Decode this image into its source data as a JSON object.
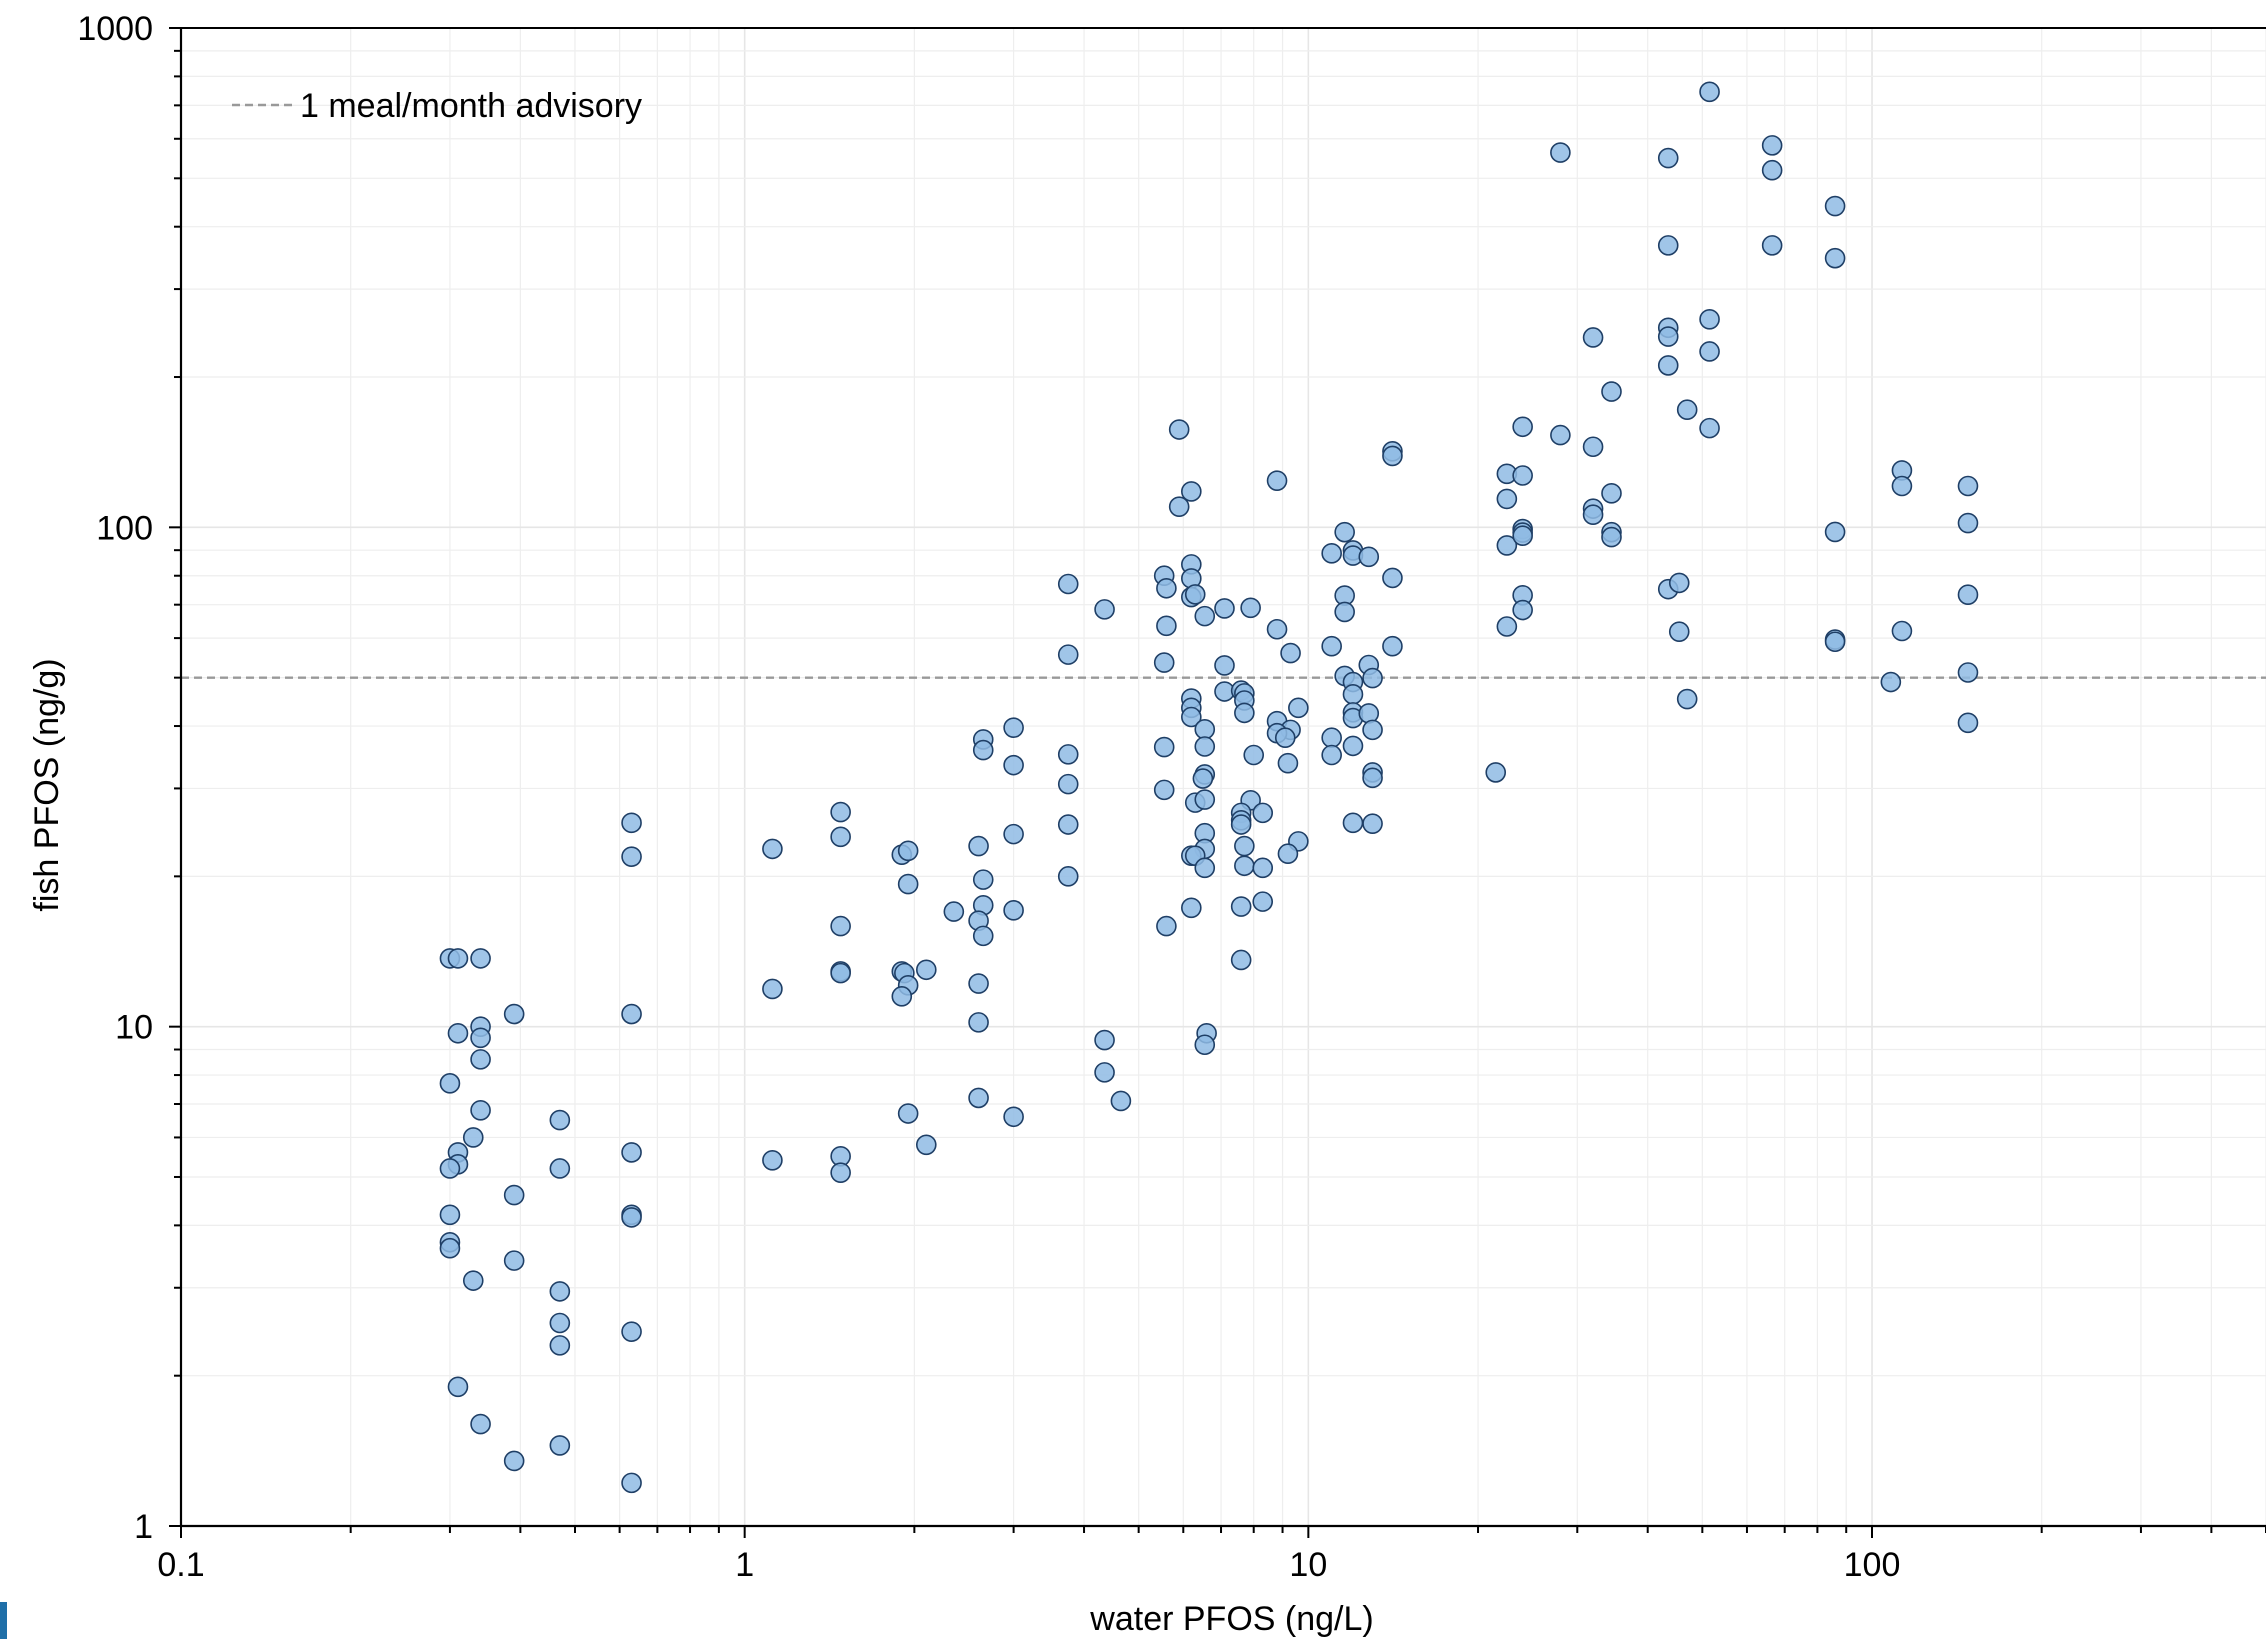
{
  "chart_data": {
    "type": "scatter",
    "xlabel": "water  PFOS (ng/L)",
    "ylabel": "fish PFOS (ng/g)",
    "xscale": "log",
    "yscale": "log",
    "xlim": [
      0.1,
      500
    ],
    "ylim": [
      1,
      1000
    ],
    "x_tick_labels": [
      "0.1",
      "1",
      "10",
      "100"
    ],
    "y_tick_labels": [
      "1",
      "10",
      "100",
      "1000"
    ],
    "grid": true,
    "legend_position": "top-left",
    "advisory": {
      "label": "1 meal/month advisory",
      "y": 50,
      "color": "#999999"
    },
    "marker": {
      "fill": "#8fbbe4",
      "stroke": "#1f3f66"
    },
    "points": [
      [
        0.3,
        13.7
      ],
      [
        0.31,
        13.7
      ],
      [
        0.34,
        13.7
      ],
      [
        0.34,
        10.0
      ],
      [
        0.34,
        9.5
      ],
      [
        0.31,
        9.7
      ],
      [
        0.34,
        8.6
      ],
      [
        0.3,
        7.7
      ],
      [
        0.34,
        6.8
      ],
      [
        0.33,
        6.0
      ],
      [
        0.31,
        5.6
      ],
      [
        0.31,
        5.3
      ],
      [
        0.3,
        5.2
      ],
      [
        0.3,
        4.2
      ],
      [
        0.3,
        3.7
      ],
      [
        0.3,
        3.6
      ],
      [
        0.33,
        3.1
      ],
      [
        0.31,
        1.9
      ],
      [
        0.34,
        1.6
      ],
      [
        0.39,
        10.6
      ],
      [
        0.39,
        4.6
      ],
      [
        0.39,
        3.4
      ],
      [
        0.39,
        1.35
      ],
      [
        0.47,
        6.5
      ],
      [
        0.47,
        5.2
      ],
      [
        0.47,
        2.95
      ],
      [
        0.47,
        2.55
      ],
      [
        0.47,
        2.3
      ],
      [
        0.47,
        1.45
      ],
      [
        0.63,
        25.6
      ],
      [
        0.63,
        21.9
      ],
      [
        0.63,
        10.6
      ],
      [
        0.63,
        5.6
      ],
      [
        0.63,
        4.2
      ],
      [
        0.63,
        4.15
      ],
      [
        0.63,
        2.45
      ],
      [
        0.63,
        1.22
      ],
      [
        1.12,
        22.7
      ],
      [
        1.12,
        11.9
      ],
      [
        1.12,
        5.4
      ],
      [
        1.48,
        26.9
      ],
      [
        1.48,
        24.0
      ],
      [
        1.48,
        15.9
      ],
      [
        1.48,
        12.9
      ],
      [
        1.48,
        12.8
      ],
      [
        1.48,
        5.5
      ],
      [
        1.48,
        5.1
      ],
      [
        1.9,
        22.1
      ],
      [
        1.95,
        22.5
      ],
      [
        1.95,
        19.3
      ],
      [
        1.9,
        12.9
      ],
      [
        1.92,
        12.8
      ],
      [
        1.95,
        12.1
      ],
      [
        1.9,
        11.5
      ],
      [
        2.1,
        13.0
      ],
      [
        2.35,
        17.0
      ],
      [
        1.95,
        6.7
      ],
      [
        2.1,
        5.8
      ],
      [
        2.6,
        23.0
      ],
      [
        2.65,
        37.6
      ],
      [
        2.65,
        35.8
      ],
      [
        2.65,
        19.7
      ],
      [
        2.65,
        17.5
      ],
      [
        2.6,
        16.3
      ],
      [
        2.65,
        15.2
      ],
      [
        2.6,
        12.2
      ],
      [
        2.6,
        10.2
      ],
      [
        2.6,
        7.2
      ],
      [
        3.0,
        39.7
      ],
      [
        3.0,
        33.4
      ],
      [
        3.0,
        24.3
      ],
      [
        3.0,
        17.1
      ],
      [
        3.0,
        6.6
      ],
      [
        3.75,
        77.0
      ],
      [
        3.75,
        55.6
      ],
      [
        3.75,
        35.1
      ],
      [
        3.75,
        30.6
      ],
      [
        3.75,
        25.4
      ],
      [
        3.75,
        20.0
      ],
      [
        4.35,
        68.5
      ],
      [
        4.35,
        9.4
      ],
      [
        4.35,
        8.1
      ],
      [
        4.65,
        7.1
      ],
      [
        5.55,
        80.0
      ],
      [
        5.6,
        75.5
      ],
      [
        5.6,
        63.5
      ],
      [
        5.55,
        53.6
      ],
      [
        5.55,
        36.3
      ],
      [
        5.55,
        29.8
      ],
      [
        5.6,
        15.9
      ],
      [
        5.9,
        157.0
      ],
      [
        5.9,
        110.0
      ],
      [
        6.2,
        118.0
      ],
      [
        6.2,
        84.3
      ],
      [
        6.2,
        79.0
      ],
      [
        6.2,
        72.5
      ],
      [
        6.3,
        73.4
      ],
      [
        6.55,
        66.4
      ],
      [
        6.2,
        45.4
      ],
      [
        6.2,
        43.5
      ],
      [
        6.2,
        41.7
      ],
      [
        6.55,
        39.4
      ],
      [
        6.55,
        36.4
      ],
      [
        6.55,
        32.0
      ],
      [
        6.5,
        31.4
      ],
      [
        6.3,
        28.1
      ],
      [
        6.55,
        28.5
      ],
      [
        6.55,
        24.4
      ],
      [
        6.55,
        22.7
      ],
      [
        6.2,
        22.0
      ],
      [
        6.3,
        22.0
      ],
      [
        6.55,
        20.8
      ],
      [
        6.2,
        17.3
      ],
      [
        6.6,
        9.7
      ],
      [
        6.55,
        9.2
      ],
      [
        7.1,
        68.8
      ],
      [
        7.1,
        52.9
      ],
      [
        7.1,
        46.9
      ],
      [
        7.6,
        47.1
      ],
      [
        7.7,
        46.5
      ],
      [
        7.7,
        45.0
      ],
      [
        7.7,
        42.5
      ],
      [
        7.9,
        69.0
      ],
      [
        8.0,
        35.0
      ],
      [
        7.9,
        28.4
      ],
      [
        7.6,
        26.8
      ],
      [
        7.6,
        25.9
      ],
      [
        7.6,
        25.4
      ],
      [
        8.3,
        26.8
      ],
      [
        7.7,
        23.0
      ],
      [
        7.7,
        21.0
      ],
      [
        8.3,
        20.8
      ],
      [
        7.6,
        17.4
      ],
      [
        8.3,
        17.8
      ],
      [
        7.6,
        13.6
      ],
      [
        8.8,
        124.0
      ],
      [
        8.8,
        62.5
      ],
      [
        9.3,
        56.0
      ],
      [
        9.6,
        43.5
      ],
      [
        8.8,
        40.9
      ],
      [
        9.3,
        39.3
      ],
      [
        8.8,
        38.7
      ],
      [
        9.1,
        37.9
      ],
      [
        9.2,
        33.7
      ],
      [
        9.6,
        23.5
      ],
      [
        9.2,
        22.2
      ],
      [
        11.0,
        88.7
      ],
      [
        11.6,
        97.8
      ],
      [
        11.6,
        73.0
      ],
      [
        11.6,
        67.7
      ],
      [
        11.0,
        57.8
      ],
      [
        11.6,
        50.4
      ],
      [
        11.0,
        37.9
      ],
      [
        11.0,
        35.0
      ],
      [
        12.0,
        89.9
      ],
      [
        12.0,
        87.8
      ],
      [
        12.0,
        49.0
      ],
      [
        12.0,
        46.3
      ],
      [
        12.0,
        42.6
      ],
      [
        12.0,
        41.5
      ],
      [
        12.0,
        36.5
      ],
      [
        12.0,
        25.6
      ],
      [
        12.8,
        87.3
      ],
      [
        12.8,
        53.0
      ],
      [
        13.0,
        49.9
      ],
      [
        12.8,
        42.4
      ],
      [
        13.0,
        39.3
      ],
      [
        13.0,
        32.3
      ],
      [
        13.0,
        31.5
      ],
      [
        13.0,
        25.5
      ],
      [
        14.1,
        142.0
      ],
      [
        14.1,
        139.0
      ],
      [
        14.1,
        79.2
      ],
      [
        14.1,
        57.8
      ],
      [
        21.5,
        32.3
      ],
      [
        22.5,
        128.0
      ],
      [
        22.5,
        114.0
      ],
      [
        22.5,
        92.0
      ],
      [
        22.5,
        63.3
      ],
      [
        24.0,
        159.0
      ],
      [
        24.0,
        127.0
      ],
      [
        24.0,
        99.2
      ],
      [
        24.0,
        97.6
      ],
      [
        24.0,
        96.2
      ],
      [
        24.0,
        73.1
      ],
      [
        24.0,
        68.3
      ],
      [
        28.0,
        563.0
      ],
      [
        28.0,
        153.0
      ],
      [
        32.0,
        240.0
      ],
      [
        32.0,
        145.0
      ],
      [
        32.0,
        109.0
      ],
      [
        32.0,
        106.0
      ],
      [
        34.5,
        187.0
      ],
      [
        34.5,
        117.0
      ],
      [
        34.5,
        97.8
      ],
      [
        34.5,
        95.6
      ],
      [
        43.5,
        549.0
      ],
      [
        43.5,
        367.0
      ],
      [
        43.5,
        251.0
      ],
      [
        43.5,
        241.0
      ],
      [
        43.5,
        211.0
      ],
      [
        43.5,
        75.2
      ],
      [
        45.5,
        77.4
      ],
      [
        45.5,
        61.8
      ],
      [
        47.0,
        172.0
      ],
      [
        47.0,
        45.3
      ],
      [
        51.5,
        745.0
      ],
      [
        51.5,
        261.0
      ],
      [
        51.5,
        225.0
      ],
      [
        51.5,
        158.0
      ],
      [
        66.5,
        582.0
      ],
      [
        66.5,
        519.0
      ],
      [
        66.5,
        367.0
      ],
      [
        86.0,
        440.0
      ],
      [
        86.0,
        346.0
      ],
      [
        86.0,
        97.9
      ],
      [
        86.0,
        59.6
      ],
      [
        86.0,
        59.0
      ],
      [
        108.0,
        49.0
      ],
      [
        113.0,
        130.0
      ],
      [
        113.0,
        121.0
      ],
      [
        113.0,
        62.0
      ],
      [
        148.0,
        121.0
      ],
      [
        148.0,
        102.0
      ],
      [
        148.0,
        73.3
      ],
      [
        148.0,
        51.2
      ],
      [
        148.0,
        40.6
      ]
    ]
  }
}
